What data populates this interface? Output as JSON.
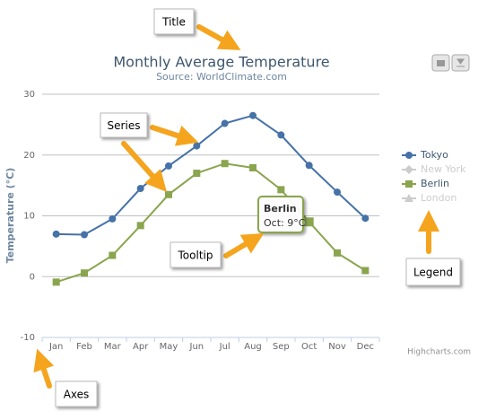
{
  "chart_data": {
    "type": "line",
    "title": "Monthly Average Temperature",
    "subtitle": "Source: WorldClimate.com",
    "y_label": "Temperature (°C)",
    "categories": [
      "Jan",
      "Feb",
      "Mar",
      "Apr",
      "May",
      "Jun",
      "Jul",
      "Aug",
      "Sep",
      "Oct",
      "Nov",
      "Dec"
    ],
    "series": [
      {
        "name": "Tokyo",
        "color": "#4572A7",
        "marker": "circle",
        "visible": true,
        "values": [
          7.0,
          6.9,
          9.5,
          14.5,
          18.2,
          21.5,
          25.2,
          26.5,
          23.3,
          18.3,
          13.9,
          9.6
        ]
      },
      {
        "name": "New York",
        "color": "#AA4643",
        "marker": "diamond",
        "visible": false,
        "values": [
          null,
          null,
          null,
          null,
          null,
          null,
          null,
          null,
          null,
          null,
          null,
          null
        ]
      },
      {
        "name": "Berlin",
        "color": "#89A54E",
        "marker": "square",
        "visible": true,
        "values": [
          -0.9,
          0.6,
          3.5,
          8.4,
          13.5,
          17.0,
          18.6,
          17.9,
          14.3,
          9.0,
          3.9,
          1.0
        ]
      },
      {
        "name": "London",
        "color": "#80699B",
        "marker": "triangle",
        "visible": false,
        "values": [
          null,
          null,
          null,
          null,
          null,
          null,
          null,
          null,
          null,
          null,
          null,
          null
        ]
      }
    ],
    "ylim": [
      -10,
      30
    ],
    "yticks": [
      -10,
      0,
      10,
      20,
      30
    ],
    "grid": true,
    "legend": "right",
    "tooltip": {
      "title": "Berlin",
      "text": "Oct: 9°C",
      "series": 2,
      "point": 9
    },
    "credits": "Highcharts.com",
    "annotations": [
      "Title",
      "Series",
      "Tooltip",
      "Legend",
      "Axes"
    ]
  }
}
